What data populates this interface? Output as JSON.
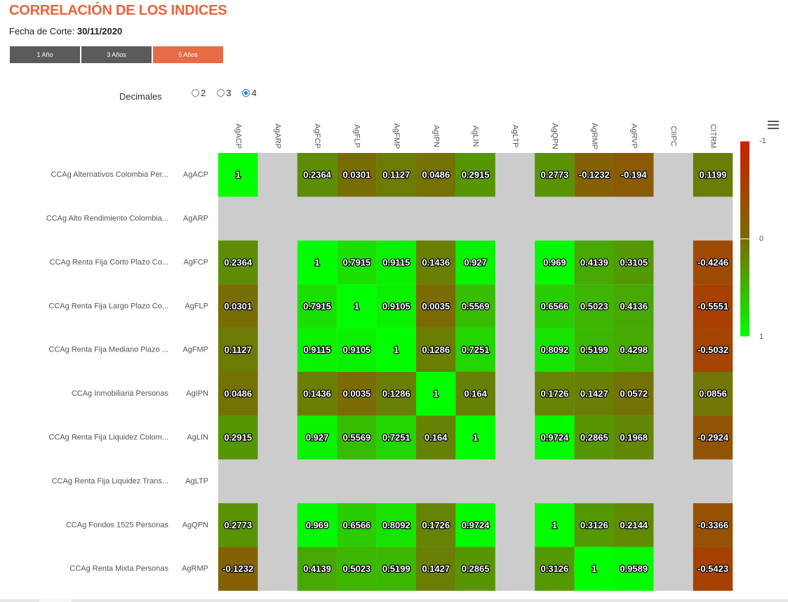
{
  "header": {
    "title": "CORRELACIÓN DE LOS INDICES",
    "fecha_label": "Fecha de Corte:",
    "fecha_value": "30/11/2020"
  },
  "periods": [
    {
      "label": "1 Año",
      "active": false
    },
    {
      "label": "3 Años",
      "active": false
    },
    {
      "label": "5 Años",
      "active": true
    }
  ],
  "decimals": {
    "label": "Decimales",
    "options": [
      "2",
      "3",
      "4"
    ],
    "selected": "4"
  },
  "menu_icon": "hamburger-menu-icon",
  "colors": {
    "accent": "#e8643c",
    "button_dark": "#5b5b5b",
    "button_active": "#e76b45",
    "empty_cell": "#cccccc",
    "scale_neg1": "#cc1f00",
    "scale_0": "#7a6a05",
    "scale_pos1": "#00ff00"
  },
  "chart_data": {
    "type": "heatmap",
    "columns": [
      "AgACP",
      "AgARP",
      "AgFCP",
      "AgFLP",
      "AgFMP",
      "AgIPN",
      "AgLIN",
      "AgLTP",
      "AgQPN",
      "AgRMP",
      "AgRVP",
      "CIIPC",
      "CITRM"
    ],
    "rows": [
      {
        "name": "CCAg Alternativos Colombia Per...",
        "code": "AgACP"
      },
      {
        "name": "CCAg Alto Rendimiento Colombia...",
        "code": "AgARP"
      },
      {
        "name": "CCAg Renta Fija Corto Plazo Co...",
        "code": "AgFCP"
      },
      {
        "name": "CCAg Renta Fija Largo Plazo Co...",
        "code": "AgFLP"
      },
      {
        "name": "CCAg Renta Fija Mediano Plazo ...",
        "code": "AgFMP"
      },
      {
        "name": "CCAg Inmobiliaria Personas",
        "code": "AgIPN"
      },
      {
        "name": "CCAg Renta Fija Liquidez Colom...",
        "code": "AgLIN"
      },
      {
        "name": "CCAg Renta Fija Liquidez Trans...",
        "code": "AgLTP"
      },
      {
        "name": "CCAg Fondos 1525 Personas",
        "code": "AgQPN"
      },
      {
        "name": "CCAg Renta Mixta Personas",
        "code": "AgRMP"
      }
    ],
    "values": [
      [
        1,
        null,
        0.2364,
        0.0301,
        0.1127,
        0.0486,
        0.2915,
        null,
        0.2773,
        -0.1232,
        -0.194,
        null,
        0.1199
      ],
      [
        null,
        null,
        null,
        null,
        null,
        null,
        null,
        null,
        null,
        null,
        null,
        null,
        null
      ],
      [
        0.2364,
        null,
        1,
        0.7915,
        0.9115,
        0.1436,
        0.927,
        null,
        0.969,
        0.4139,
        0.3105,
        null,
        -0.4246
      ],
      [
        0.0301,
        null,
        0.7915,
        1,
        0.9105,
        0.0035,
        0.5569,
        null,
        0.6566,
        0.5023,
        0.4136,
        null,
        -0.5551
      ],
      [
        0.1127,
        null,
        0.9115,
        0.9105,
        1,
        0.1286,
        0.7251,
        null,
        0.8092,
        0.5199,
        0.4298,
        null,
        -0.5032
      ],
      [
        0.0486,
        null,
        0.1436,
        0.0035,
        0.1286,
        1,
        0.164,
        null,
        0.1726,
        0.1427,
        0.0572,
        null,
        0.0856
      ],
      [
        0.2915,
        null,
        0.927,
        0.5569,
        0.7251,
        0.164,
        1,
        null,
        0.9724,
        0.2865,
        0.1968,
        null,
        -0.2924
      ],
      [
        null,
        null,
        null,
        null,
        null,
        null,
        null,
        null,
        null,
        null,
        null,
        null,
        null
      ],
      [
        0.2773,
        null,
        0.969,
        0.6566,
        0.8092,
        0.1726,
        0.9724,
        null,
        1,
        0.3126,
        0.2144,
        null,
        -0.3366
      ],
      [
        -0.1232,
        null,
        0.4139,
        0.5023,
        0.5199,
        0.1427,
        0.2865,
        null,
        0.3126,
        1,
        0.9589,
        null,
        -0.5423
      ]
    ],
    "color_scale": {
      "min": -1,
      "max": 1,
      "tick_labels": [
        "-1",
        "0",
        "1"
      ]
    },
    "legend_placement": "right"
  }
}
